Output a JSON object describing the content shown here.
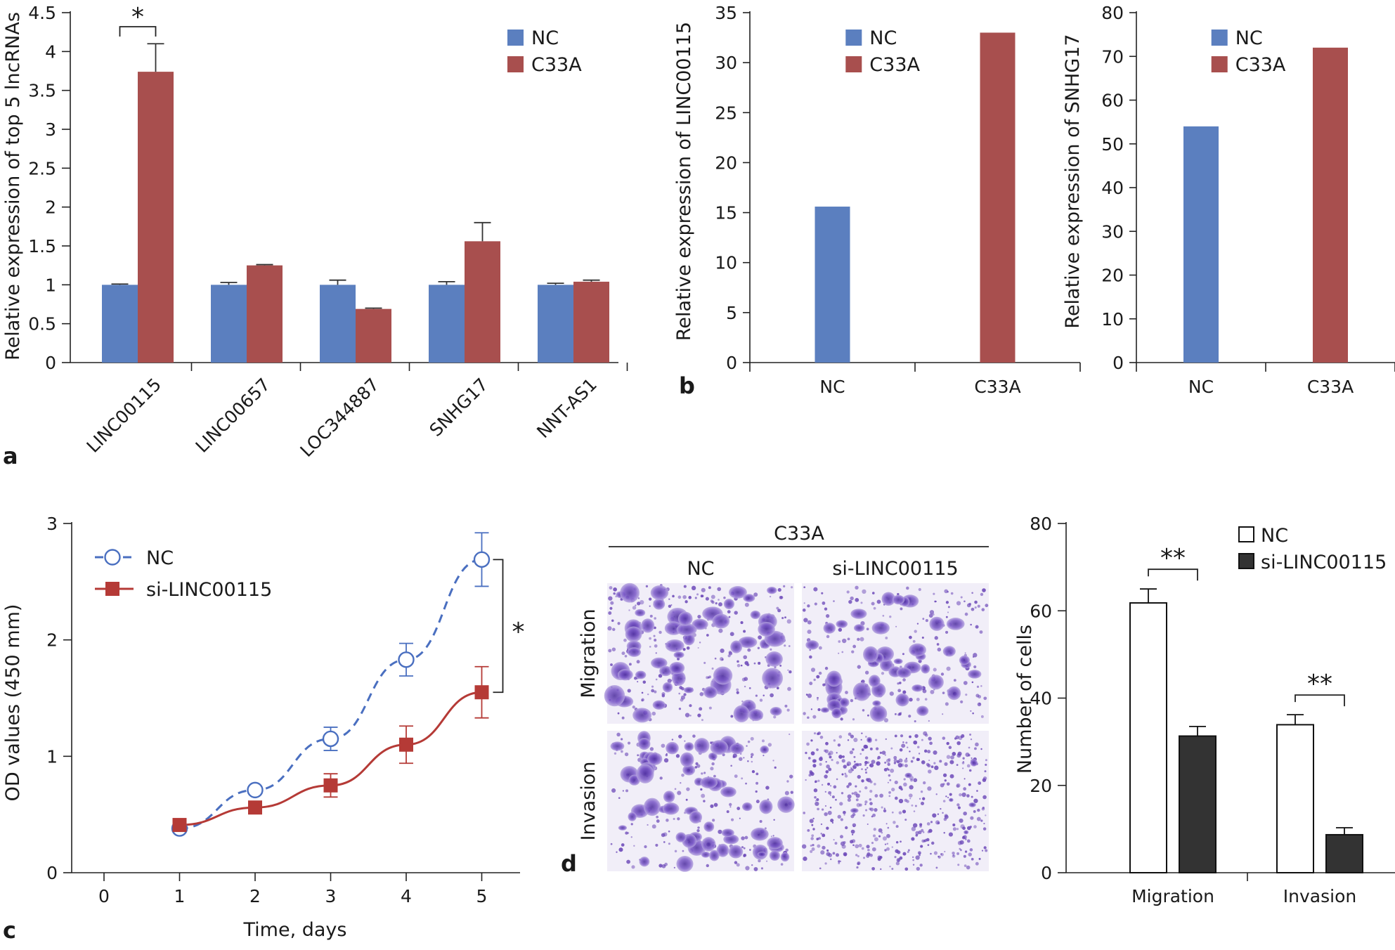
{
  "colors": {
    "nc": "#5b7fbf",
    "c33a": "#a84f4e",
    "line_nc": "#4a6fc0",
    "line_si": "#b53a36",
    "open_bar": "#ffffff",
    "dark_bar": "#333333",
    "stain": "#6b47b8"
  },
  "chart_data": [
    {
      "panel": "a",
      "type": "bar",
      "ylabel": "Relative expression of top 5 lncRNAs",
      "yticks": [
        "0",
        "0.5",
        "1",
        "1.5",
        "2",
        "2.5",
        "3",
        "3.5",
        "4",
        "4.5"
      ],
      "ylim": [
        0,
        4.5
      ],
      "categories": [
        "LINC00115",
        "LINC00657",
        "LOC344887",
        "SNHG17",
        "NNT-AS1"
      ],
      "series": [
        {
          "name": "NC",
          "values": [
            1.0,
            1.0,
            1.0,
            1.0,
            1.0
          ],
          "errors": [
            0.01,
            0.03,
            0.06,
            0.04,
            0.02
          ]
        },
        {
          "name": "C33A",
          "values": [
            3.74,
            1.25,
            0.69,
            1.56,
            1.04
          ],
          "errors": [
            0.36,
            0.01,
            0.01,
            0.24,
            0.02
          ]
        }
      ],
      "annotations": [
        {
          "text": "*",
          "category": "LINC00115"
        }
      ],
      "legend": "top-right"
    },
    {
      "panel": "b-left",
      "type": "bar",
      "ylabel": "Relative expression of LINC00115",
      "yticks": [
        "0",
        "5",
        "10",
        "15",
        "20",
        "25",
        "30",
        "35"
      ],
      "ylim": [
        0,
        35
      ],
      "categories": [
        "NC",
        "C33A"
      ],
      "values": [
        15.6,
        33.0
      ],
      "legend_entries": [
        "NC",
        "C33A"
      ],
      "legend": "top"
    },
    {
      "panel": "b-right",
      "type": "bar",
      "ylabel": "Relative expression of SNHG17",
      "yticks": [
        "0",
        "10",
        "20",
        "30",
        "40",
        "50",
        "60",
        "70",
        "80"
      ],
      "ylim": [
        0,
        80
      ],
      "categories": [
        "NC",
        "C33A"
      ],
      "values": [
        54.0,
        72.0
      ],
      "legend_entries": [
        "NC",
        "C33A"
      ],
      "legend": "top"
    },
    {
      "panel": "c",
      "type": "line",
      "xlabel": "Time, days",
      "ylabel": "OD values (450 mm)",
      "xticks": [
        "0",
        "1",
        "2",
        "3",
        "4",
        "5"
      ],
      "yticks": [
        "0",
        "1",
        "2",
        "3"
      ],
      "xlim": [
        0,
        5.5
      ],
      "ylim": [
        0,
        3
      ],
      "x": [
        1,
        2,
        3,
        4,
        5
      ],
      "series": [
        {
          "name": "NC",
          "values": [
            0.38,
            0.71,
            1.15,
            1.83,
            2.69
          ],
          "errors": [
            0.02,
            0.03,
            0.1,
            0.14,
            0.23
          ]
        },
        {
          "name": "si-LINC00115",
          "values": [
            0.41,
            0.56,
            0.75,
            1.1,
            1.55
          ],
          "errors": [
            0.03,
            0.05,
            0.1,
            0.16,
            0.22
          ]
        }
      ],
      "annotations": [
        {
          "text": "*",
          "between": "day 5"
        }
      ],
      "legend": "top-left"
    },
    {
      "panel": "d",
      "type": "bar",
      "ylabel": "Number of cells",
      "yticks": [
        "0",
        "20",
        "40",
        "60",
        "80"
      ],
      "ylim": [
        0,
        80
      ],
      "categories": [
        "Migration",
        "Invasion"
      ],
      "series": [
        {
          "name": "NC",
          "values": [
            61.8,
            33.9
          ],
          "errors": [
            3.2,
            2.3
          ]
        },
        {
          "name": "si-LINC00115",
          "values": [
            31.3,
            8.7
          ],
          "errors": [
            2.2,
            1.6
          ]
        }
      ],
      "annotations": [
        {
          "text": "**",
          "category": "Migration"
        },
        {
          "text": "**",
          "category": "Invasion"
        }
      ],
      "legend": "top-right"
    }
  ],
  "panel_labels": {
    "a": "a",
    "b": "b",
    "c": "c",
    "d": "d"
  },
  "photos": {
    "header": "C33A",
    "columns": [
      "NC",
      "si-LINC00115"
    ],
    "rows": [
      "Migration",
      "Invasion"
    ]
  }
}
